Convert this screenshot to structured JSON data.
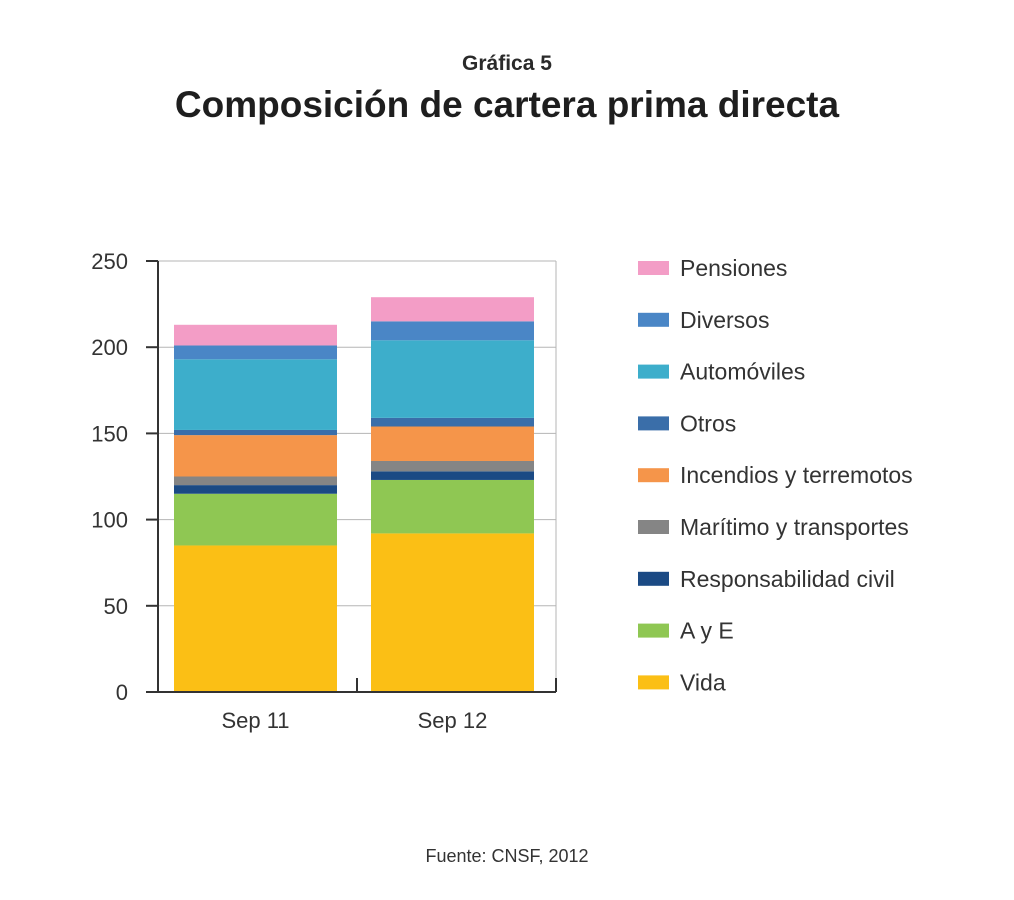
{
  "header": {
    "kicker": "Gráfica 5",
    "title": "Composición de cartera prima directa"
  },
  "source": "Fuente: CNSF, 2012",
  "chart_data": {
    "type": "bar",
    "stacked": true,
    "categories": [
      "Sep 11",
      "Sep 12"
    ],
    "ylim": [
      0,
      250
    ],
    "yticks": [
      0,
      50,
      100,
      150,
      200,
      250
    ],
    "grid": true,
    "legend_position": "right",
    "series": [
      {
        "name": "Vida",
        "color": "#fbbf15",
        "values": [
          85,
          92
        ]
      },
      {
        "name": "A y E",
        "color": "#8fc753",
        "values": [
          30,
          31
        ]
      },
      {
        "name": "Responsabilidad civil",
        "color": "#1b4a84",
        "values": [
          5,
          5
        ]
      },
      {
        "name": "Marítimo y transportes",
        "color": "#858585",
        "values": [
          5,
          6
        ]
      },
      {
        "name": "Incendios y terremotos",
        "color": "#f5954a",
        "values": [
          24,
          20
        ]
      },
      {
        "name": "Otros",
        "color": "#3a6ea9",
        "values": [
          3,
          5
        ]
      },
      {
        "name": "Automóviles",
        "color": "#3daecb",
        "values": [
          41,
          45
        ]
      },
      {
        "name": "Diversos",
        "color": "#4a86c6",
        "values": [
          8,
          11
        ]
      },
      {
        "name": "Pensiones",
        "color": "#f39dc6",
        "values": [
          12,
          14
        ]
      }
    ]
  }
}
